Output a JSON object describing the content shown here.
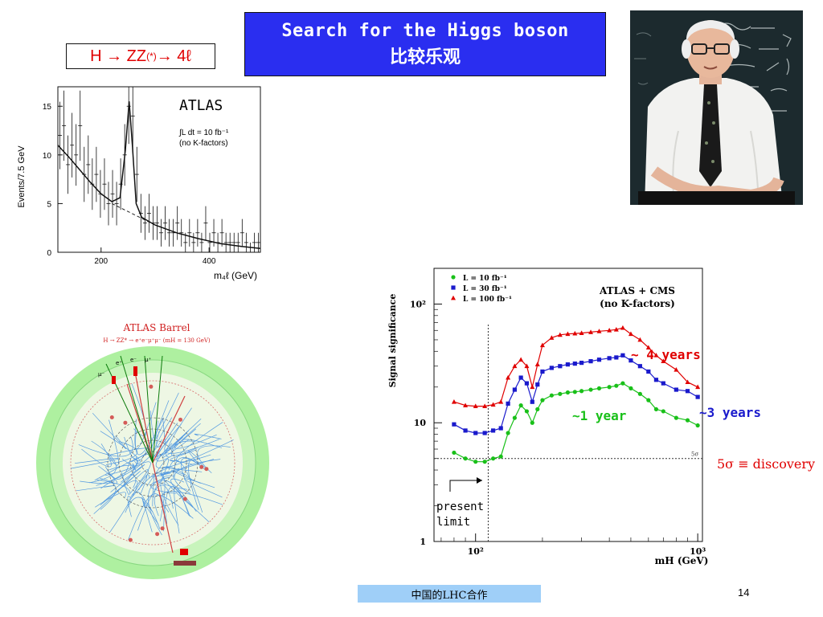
{
  "header": {
    "title_line1": "Search for the Higgs boson",
    "title_line2": "比较乐观",
    "channel_prefix": "H → ZZ",
    "channel_sup": "(*)",
    "channel_suffix": " → 4ℓ"
  },
  "colors": {
    "title_bg": "#2a2ef0",
    "footer_bg": "#9fcff8",
    "green": "#19c019",
    "blue": "#1a1acc",
    "red": "#e00000"
  },
  "annotations": {
    "four_years": "~ 4 years",
    "three_years": "~3 years",
    "one_year": "~1 year",
    "discovery": "5σ ≡ discovery",
    "present_limit_line1": "present",
    "present_limit_line2": "limit"
  },
  "event_display": {
    "title": "ATLAS Barrel",
    "subtitle": "H → ZZ* → e⁺e⁻μ⁺μ⁻ (mH = 130 GeV)",
    "track_labels": [
      "μ⁻",
      "e⁺",
      "e⁻",
      "μ⁺"
    ]
  },
  "footer": {
    "text": "中国的LHC合作",
    "page_number": "14"
  },
  "chart_data": [
    {
      "type": "bar",
      "title": "ATLAS",
      "annotation_line1": "∫L dt = 10 fb⁻¹",
      "annotation_line2": "(no K-factors)",
      "ylabel": "Events/7.5 GeV",
      "xlabel": "m₄ℓ (GeV)",
      "xlim": [
        120,
        495
      ],
      "ylim": [
        0,
        17
      ],
      "yticks": [
        0,
        5,
        10,
        15
      ],
      "xticks": [
        200,
        400
      ],
      "bin_width": 7.5,
      "bins": [
        {
          "x": 120,
          "y": 12
        },
        {
          "x": 127.5,
          "y": 13
        },
        {
          "x": 135,
          "y": 9
        },
        {
          "x": 142.5,
          "y": 11
        },
        {
          "x": 150,
          "y": 10
        },
        {
          "x": 157.5,
          "y": 13
        },
        {
          "x": 165,
          "y": 8
        },
        {
          "x": 172.5,
          "y": 9
        },
        {
          "x": 180,
          "y": 7
        },
        {
          "x": 187.5,
          "y": 8
        },
        {
          "x": 195,
          "y": 6
        },
        {
          "x": 202.5,
          "y": 7
        },
        {
          "x": 210,
          "y": 5
        },
        {
          "x": 217.5,
          "y": 6
        },
        {
          "x": 225,
          "y": 5
        },
        {
          "x": 232.5,
          "y": 7
        },
        {
          "x": 240,
          "y": 10
        },
        {
          "x": 247.5,
          "y": 15
        },
        {
          "x": 255,
          "y": 14
        },
        {
          "x": 262.5,
          "y": 8
        },
        {
          "x": 270,
          "y": 4
        },
        {
          "x": 277.5,
          "y": 3
        },
        {
          "x": 285,
          "y": 4
        },
        {
          "x": 292.5,
          "y": 3
        },
        {
          "x": 300,
          "y": 3
        },
        {
          "x": 307.5,
          "y": 2
        },
        {
          "x": 315,
          "y": 3
        },
        {
          "x": 322.5,
          "y": 2
        },
        {
          "x": 330,
          "y": 2
        },
        {
          "x": 337.5,
          "y": 3
        },
        {
          "x": 345,
          "y": 2
        },
        {
          "x": 352.5,
          "y": 1
        },
        {
          "x": 360,
          "y": 2
        },
        {
          "x": 367.5,
          "y": 1
        },
        {
          "x": 375,
          "y": 2
        },
        {
          "x": 382.5,
          "y": 1
        },
        {
          "x": 390,
          "y": 3
        },
        {
          "x": 397.5,
          "y": 1
        },
        {
          "x": 405,
          "y": 2
        },
        {
          "x": 412.5,
          "y": 1
        },
        {
          "x": 420,
          "y": 2
        },
        {
          "x": 427.5,
          "y": 1
        },
        {
          "x": 435,
          "y": 1
        },
        {
          "x": 442.5,
          "y": 1
        },
        {
          "x": 450,
          "y": 1
        },
        {
          "x": 457.5,
          "y": 2
        },
        {
          "x": 465,
          "y": 1
        },
        {
          "x": 472.5,
          "y": 0
        },
        {
          "x": 480,
          "y": 1
        },
        {
          "x": 487.5,
          "y": 1
        }
      ],
      "fit_curve": [
        [
          120,
          11
        ],
        [
          140,
          9.8
        ],
        [
          160,
          8.5
        ],
        [
          180,
          7.2
        ],
        [
          200,
          6.0
        ],
        [
          220,
          5.2
        ],
        [
          235,
          5.6
        ],
        [
          245,
          10.5
        ],
        [
          252,
          15.5
        ],
        [
          258,
          11
        ],
        [
          265,
          5
        ],
        [
          275,
          3.6
        ],
        [
          300,
          2.8
        ],
        [
          340,
          2.0
        ],
        [
          380,
          1.4
        ],
        [
          420,
          0.9
        ],
        [
          460,
          0.6
        ],
        [
          495,
          0.4
        ]
      ],
      "background_curve": [
        [
          220,
          5.0
        ],
        [
          260,
          3.9
        ],
        [
          300,
          2.8
        ],
        [
          340,
          2.0
        ],
        [
          380,
          1.4
        ],
        [
          420,
          0.9
        ],
        [
          460,
          0.6
        ],
        [
          495,
          0.4
        ]
      ]
    },
    {
      "type": "line",
      "title_line1": "ATLAS + CMS",
      "title_line2": "(no K-factors)",
      "xlabel": "mH (GeV)",
      "ylabel": "Signal significance",
      "x_scale": "log",
      "y_scale": "log",
      "xlim": [
        65,
        1050
      ],
      "ylim": [
        1,
        200
      ],
      "xtick_labels": [
        "10²",
        "10³"
      ],
      "ytick_labels": [
        "1",
        "10",
        "10²"
      ],
      "reference_lines": {
        "five_sigma": 5,
        "present_limit_mh": 114,
        "five_sigma_label": "5σ"
      },
      "series": [
        {
          "name": "L = 10 fb⁻¹",
          "marker": "circle",
          "color": "#19c019",
          "points": [
            [
              80,
              5.6
            ],
            [
              90,
              5.0
            ],
            [
              100,
              4.7
            ],
            [
              110,
              4.7
            ],
            [
              120,
              5.0
            ],
            [
              130,
              5.2
            ],
            [
              140,
              8.2
            ],
            [
              150,
              11
            ],
            [
              160,
              14
            ],
            [
              170,
              12.5
            ],
            [
              180,
              10.0
            ],
            [
              190,
              13
            ],
            [
              200,
              15.5
            ],
            [
              220,
              17
            ],
            [
              240,
              17.5
            ],
            [
              260,
              18
            ],
            [
              280,
              18.2
            ],
            [
              300,
              18.5
            ],
            [
              330,
              19
            ],
            [
              360,
              19.5
            ],
            [
              400,
              20
            ],
            [
              430,
              20.5
            ],
            [
              460,
              21.5
            ],
            [
              500,
              19.5
            ],
            [
              550,
              17.5
            ],
            [
              600,
              15.5
            ],
            [
              650,
              13
            ],
            [
              700,
              12.5
            ],
            [
              800,
              11
            ],
            [
              900,
              10.5
            ],
            [
              1000,
              9.5
            ]
          ]
        },
        {
          "name": "L = 30 fb⁻¹",
          "marker": "square",
          "color": "#1a1acc",
          "points": [
            [
              80,
              9.7
            ],
            [
              90,
              8.6
            ],
            [
              100,
              8.2
            ],
            [
              110,
              8.2
            ],
            [
              120,
              8.6
            ],
            [
              130,
              9.0
            ],
            [
              140,
              14.5
            ],
            [
              150,
              19
            ],
            [
              160,
              24
            ],
            [
              170,
              21.5
            ],
            [
              180,
              15
            ],
            [
              190,
              21
            ],
            [
              200,
              27
            ],
            [
              220,
              29
            ],
            [
              240,
              30
            ],
            [
              260,
              31
            ],
            [
              280,
              31.5
            ],
            [
              300,
              32
            ],
            [
              330,
              33
            ],
            [
              360,
              34
            ],
            [
              400,
              35
            ],
            [
              430,
              35.5
            ],
            [
              460,
              37
            ],
            [
              500,
              33.5
            ],
            [
              550,
              30
            ],
            [
              600,
              27
            ],
            [
              650,
              23
            ],
            [
              700,
              21.5
            ],
            [
              800,
              19
            ],
            [
              900,
              18.5
            ],
            [
              1000,
              16.5
            ]
          ]
        },
        {
          "name": "L = 100 fb⁻¹",
          "marker": "triangle",
          "color": "#e00000",
          "points": [
            [
              80,
              15
            ],
            [
              90,
              14
            ],
            [
              100,
              13.8
            ],
            [
              110,
              13.8
            ],
            [
              120,
              14.2
            ],
            [
              130,
              15
            ],
            [
              140,
              24
            ],
            [
              150,
              30
            ],
            [
              160,
              34
            ],
            [
              170,
              30
            ],
            [
              180,
              20
            ],
            [
              190,
              31
            ],
            [
              200,
              45
            ],
            [
              220,
              52
            ],
            [
              240,
              55
            ],
            [
              260,
              56
            ],
            [
              280,
              56.5
            ],
            [
              300,
              57
            ],
            [
              330,
              58
            ],
            [
              360,
              59
            ],
            [
              400,
              60
            ],
            [
              430,
              61
            ],
            [
              460,
              63
            ],
            [
              500,
              56
            ],
            [
              550,
              50
            ],
            [
              600,
              43
            ],
            [
              650,
              37
            ],
            [
              700,
              33
            ],
            [
              800,
              28
            ],
            [
              900,
              22
            ],
            [
              1000,
              20
            ]
          ]
        }
      ]
    }
  ]
}
